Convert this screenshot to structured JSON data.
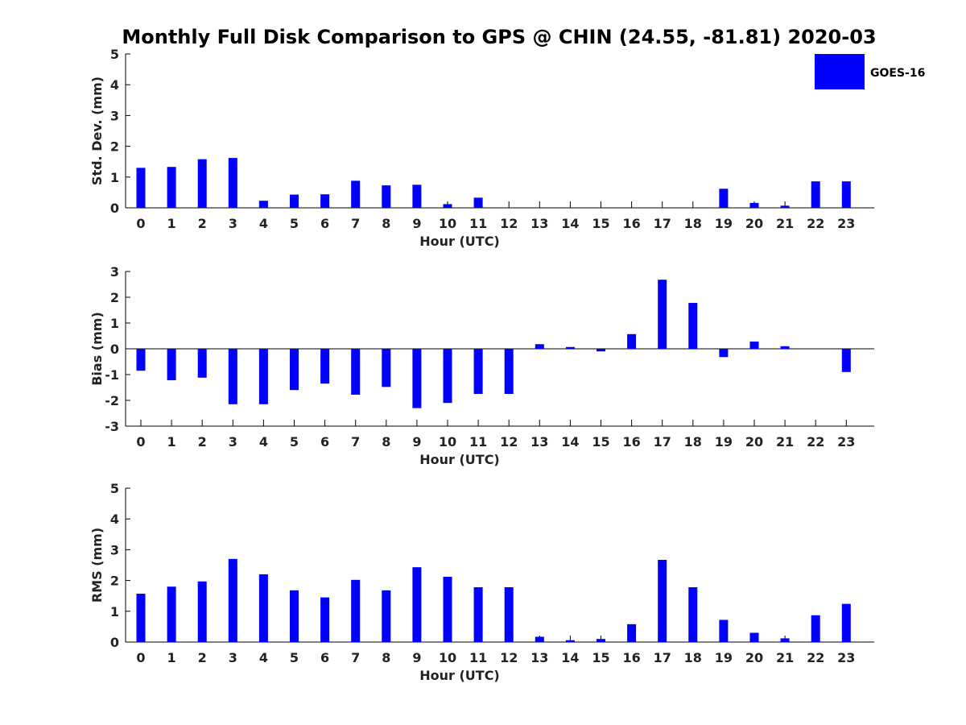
{
  "title": "Monthly Full Disk Comparison to GPS @ CHIN (24.55, -81.81) 2020-03",
  "legend": {
    "label": "GOES-16",
    "placement": "top-right"
  },
  "colors": {
    "bar": "#0000ff",
    "axis": "#000000",
    "text": "#222222"
  },
  "chart_data": [
    {
      "type": "bar",
      "title": "",
      "xlabel": "Hour (UTC)",
      "ylabel": "Std. Dev. (mm)",
      "ylim": [
        0,
        5
      ],
      "yticks": [
        0,
        1,
        2,
        3,
        4,
        5
      ],
      "categories": [
        "0",
        "1",
        "2",
        "3",
        "4",
        "5",
        "6",
        "7",
        "8",
        "9",
        "10",
        "11",
        "12",
        "13",
        "14",
        "15",
        "16",
        "17",
        "18",
        "19",
        "20",
        "21",
        "22",
        "23"
      ],
      "series": [
        {
          "name": "GOES-16",
          "values": [
            1.3,
            1.33,
            1.58,
            1.62,
            0.23,
            0.43,
            0.44,
            0.88,
            0.73,
            0.75,
            0.12,
            0.33,
            0,
            0,
            0,
            0,
            0,
            0,
            0,
            0.62,
            0.16,
            0.07,
            0.86,
            0.86
          ]
        }
      ],
      "grid": false
    },
    {
      "type": "bar",
      "title": "",
      "xlabel": "Hour (UTC)",
      "ylabel": "Bias (mm)",
      "ylim": [
        -3,
        3
      ],
      "yticks": [
        -3,
        -2,
        -1,
        0,
        1,
        2,
        3
      ],
      "categories": [
        "0",
        "1",
        "2",
        "3",
        "4",
        "5",
        "6",
        "7",
        "8",
        "9",
        "10",
        "11",
        "12",
        "13",
        "14",
        "15",
        "16",
        "17",
        "18",
        "19",
        "20",
        "21",
        "22",
        "23"
      ],
      "series": [
        {
          "name": "GOES-16",
          "values": [
            -0.85,
            -1.22,
            -1.12,
            -2.15,
            -2.15,
            -1.6,
            -1.35,
            -1.78,
            -1.48,
            -2.3,
            -2.1,
            -1.75,
            -1.75,
            0.18,
            0.07,
            -0.1,
            0.57,
            2.68,
            1.78,
            -0.32,
            0.28,
            0.1,
            0,
            -0.9
          ]
        }
      ],
      "grid": false
    },
    {
      "type": "bar",
      "title": "",
      "xlabel": "Hour (UTC)",
      "ylabel": "RMS (mm)",
      "ylim": [
        0,
        5
      ],
      "yticks": [
        0,
        1,
        2,
        3,
        4,
        5
      ],
      "categories": [
        "0",
        "1",
        "2",
        "3",
        "4",
        "5",
        "6",
        "7",
        "8",
        "9",
        "10",
        "11",
        "12",
        "13",
        "14",
        "15",
        "16",
        "17",
        "18",
        "19",
        "20",
        "21",
        "22",
        "23"
      ],
      "series": [
        {
          "name": "GOES-16",
          "values": [
            1.57,
            1.8,
            1.97,
            2.7,
            2.2,
            1.68,
            1.45,
            2.02,
            1.68,
            2.43,
            2.12,
            1.78,
            1.78,
            0.17,
            0.06,
            0.1,
            0.58,
            2.67,
            1.78,
            0.72,
            0.3,
            0.12,
            0.87,
            1.24
          ]
        }
      ],
      "grid": false
    }
  ]
}
